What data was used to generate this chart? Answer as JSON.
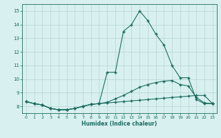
{
  "xlabel": "Humidex (Indice chaleur)",
  "x": [
    0,
    1,
    2,
    3,
    4,
    5,
    6,
    7,
    8,
    9,
    10,
    11,
    12,
    13,
    14,
    15,
    16,
    17,
    18,
    19,
    20,
    21,
    22,
    23
  ],
  "line1": [
    8.35,
    8.2,
    8.1,
    7.85,
    7.75,
    7.75,
    7.85,
    8.0,
    8.15,
    8.2,
    8.25,
    8.3,
    8.35,
    8.4,
    8.45,
    8.5,
    8.55,
    8.6,
    8.65,
    8.7,
    8.75,
    8.8,
    8.8,
    8.2
  ],
  "line2": [
    8.35,
    8.2,
    8.1,
    7.85,
    7.75,
    7.75,
    7.85,
    8.0,
    8.15,
    8.2,
    8.3,
    8.55,
    8.8,
    9.1,
    9.4,
    9.6,
    9.75,
    9.85,
    9.9,
    9.6,
    9.5,
    8.65,
    8.25,
    8.2
  ],
  "line3": [
    8.35,
    8.2,
    8.1,
    7.85,
    7.75,
    7.75,
    7.85,
    8.0,
    8.15,
    8.2,
    10.5,
    10.5,
    13.5,
    14.0,
    15.0,
    14.3,
    13.3,
    12.5,
    11.0,
    10.1,
    10.1,
    8.5,
    8.2,
    8.2
  ],
  "line_color": "#1a6b5e",
  "bg_color": "#d8f0f0",
  "grid_color": "#b8d4d4",
  "ylim": [
    7.5,
    15.5
  ],
  "xlim": [
    -0.5,
    23.5
  ],
  "yticks": [
    8,
    9,
    10,
    11,
    12,
    13,
    14,
    15
  ],
  "xticks": [
    0,
    1,
    2,
    3,
    4,
    5,
    6,
    7,
    8,
    9,
    10,
    11,
    12,
    13,
    14,
    15,
    16,
    17,
    18,
    19,
    20,
    21,
    22,
    23
  ]
}
